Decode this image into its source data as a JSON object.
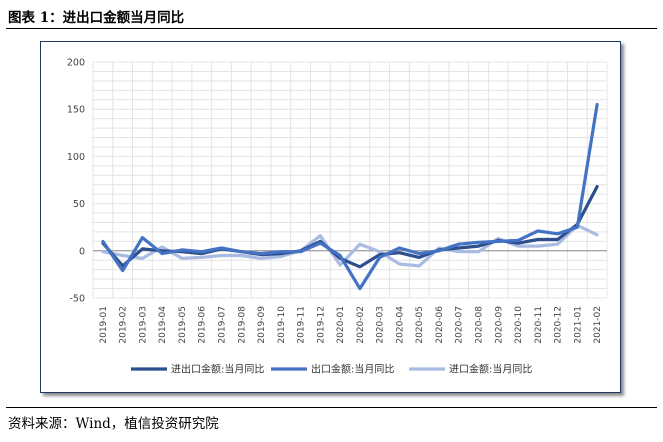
{
  "caption": "图表 1：进出口金额当月同比",
  "source": "资料来源：Wind，植信投资研究院",
  "chart_data": {
    "type": "line",
    "title": "",
    "xlabel": "",
    "ylabel": "",
    "ylim": [
      -50,
      200
    ],
    "yticks": [
      -50,
      0,
      50,
      100,
      150,
      200
    ],
    "grid": true,
    "legend_position": "bottom",
    "categories": [
      "2019-01",
      "2019-02",
      "2019-03",
      "2019-04",
      "2019-05",
      "2019-06",
      "2019-07",
      "2019-08",
      "2019-09",
      "2019-10",
      "2019-11",
      "2019-12",
      "2020-01",
      "2020-02",
      "2020-03",
      "2020-04",
      "2020-05",
      "2020-06",
      "2020-07",
      "2020-08",
      "2020-09",
      "2020-10",
      "2020-11",
      "2020-12",
      "2021-01",
      "2021-02"
    ],
    "series": [
      {
        "name": "进出口金额:当月同比",
        "color": "#2e4f8e",
        "width": 3.2,
        "values": [
          8,
          -16,
          2,
          0,
          -1,
          -3,
          2,
          -1,
          -4,
          -3,
          0,
          10,
          -8,
          -17,
          -4,
          -2,
          -7,
          1,
          3,
          5,
          11,
          8,
          12,
          12,
          28,
          68
        ]
      },
      {
        "name": "出口金额:当月同比",
        "color": "#4472c4",
        "width": 3.2,
        "values": [
          10,
          -21,
          14,
          -3,
          1,
          -1,
          3,
          -1,
          -3,
          -1,
          -1,
          8,
          -5,
          -40,
          -7,
          3,
          -3,
          0,
          7,
          9,
          10,
          11,
          21,
          18,
          25,
          155
        ]
      },
      {
        "name": "进口金额:当月同比",
        "color": "#a9bbe3",
        "width": 3.2,
        "values": [
          -1,
          -5,
          -8,
          4,
          -8,
          -7,
          -5,
          -5,
          -8,
          -6,
          0,
          16,
          -15,
          7,
          -1,
          -14,
          -16,
          3,
          -1,
          -1,
          13,
          5,
          5,
          7,
          27,
          17
        ]
      }
    ]
  }
}
